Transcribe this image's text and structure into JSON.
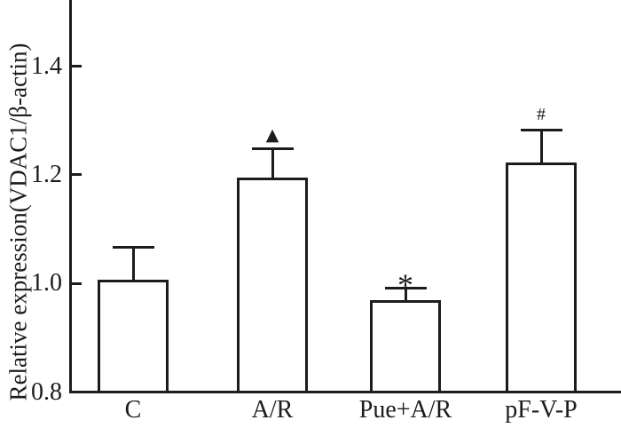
{
  "figure": {
    "background": "#ffffff",
    "ink": "#1c1c1c"
  },
  "chart_data": {
    "type": "bar",
    "title": "",
    "xlabel": "",
    "ylabel": "Relative expression(VDAC1/β-actin)",
    "categories": [
      "C",
      "A/R",
      "Pue+A/R",
      "pF-V-P"
    ],
    "values": [
      1.004,
      1.192,
      0.966,
      1.22
    ],
    "errors_plus": [
      0.062,
      0.056,
      0.025,
      0.062
    ],
    "annotations": [
      "",
      "▲",
      "*",
      "#"
    ],
    "ytick_labels": [
      "0.8",
      "1.0",
      "1.2",
      "1.4"
    ],
    "ytick_values": [
      0.8,
      1.0,
      1.2,
      1.4
    ],
    "ylim": [
      0.8,
      1.52
    ],
    "bar_fill": "#ffffff",
    "bar_edge": "#1c1c1c",
    "grid": false,
    "legend": "none",
    "error_bars": "upper-only with caps"
  }
}
